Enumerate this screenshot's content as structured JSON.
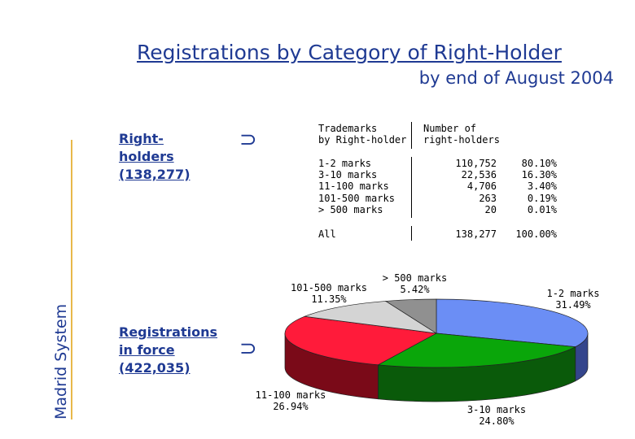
{
  "title": "Registrations by Category of Right-Holder",
  "subtitle": "by end of August 2004",
  "side_label": "Madrid System",
  "group1": {
    "line1": "Right-",
    "line2": "holders",
    "line3": "(138,277)"
  },
  "group2": {
    "line1": "Registrations",
    "line2": "in force",
    "line3": "(422,035)"
  },
  "arrow_glyph": "⊃",
  "table": {
    "header_col1": [
      "Trademarks",
      "by Right-holder"
    ],
    "header_col2": [
      "Number of",
      "right-holders"
    ],
    "rows": [
      {
        "category": "1-2 marks",
        "count": "110,752",
        "pct": "80.10%"
      },
      {
        "category": "3-10 marks",
        "count": "22,536",
        "pct": "16.30%"
      },
      {
        "category": "11-100 marks",
        "count": "4,706",
        "pct": "3.40%"
      },
      {
        "category": "101-500 marks",
        "count": "263",
        "pct": "0.19%"
      },
      {
        "category": "> 500 marks",
        "count": "20",
        "pct": "0.01%"
      }
    ],
    "total": {
      "category": "All",
      "count": "138,277",
      "pct": "100.00%"
    }
  },
  "chart_data": {
    "type": "pie",
    "title": "",
    "slices": [
      {
        "label": "1-2 marks",
        "value": 31.49,
        "text": "31.49%",
        "color": "#6b8ef5",
        "side": "#34458c"
      },
      {
        "label": "3-10 marks",
        "value": 24.8,
        "text": "24.80%",
        "color": "#0aa60a",
        "side": "#0a5a0a"
      },
      {
        "label": "11-100 marks",
        "value": 26.94,
        "text": "26.94%",
        "color": "#ff1b3a",
        "side": "#7a0a18"
      },
      {
        "label": "101-500 marks",
        "value": 11.35,
        "text": "11.35%",
        "color": "#d4d4d4",
        "side": "#8a8a8a"
      },
      {
        "label": "> 500 marks",
        "value": 5.42,
        "text": "5.42%",
        "color": "#909090",
        "side": "#5a5a5a"
      }
    ],
    "legend": "none",
    "style": "3d"
  }
}
